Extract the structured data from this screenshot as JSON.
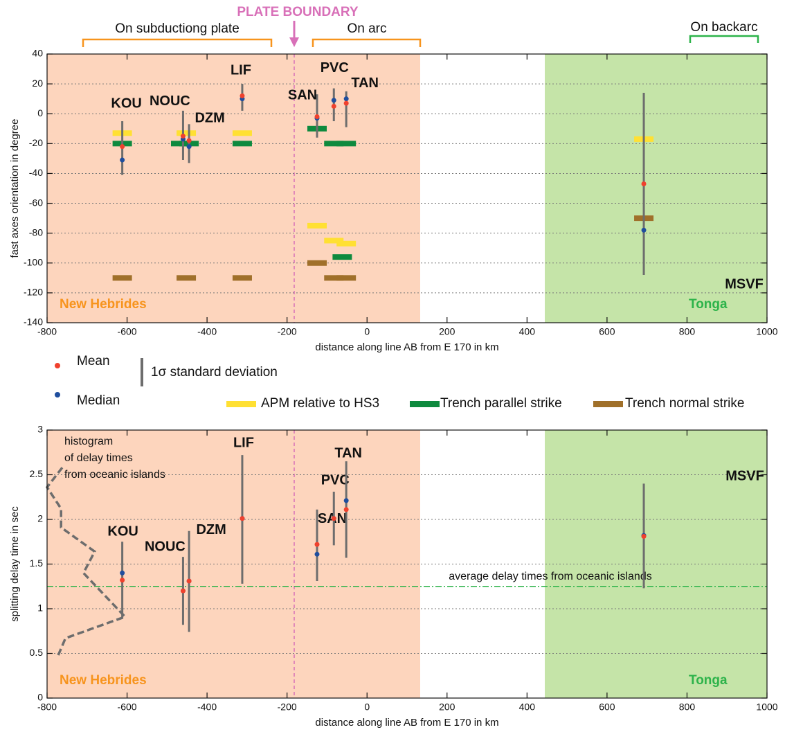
{
  "header": {
    "plate_boundary": "PLATE BOUNDARY",
    "regions": [
      "On subductiong plate",
      "On arc",
      "On backarc"
    ]
  },
  "legend": {
    "mean": "Mean",
    "median": "Median",
    "sd": "1σ standard deviation"
  },
  "colors": {
    "mean": "#f0412d",
    "median": "#1f4e9e",
    "sd": "#6d6d6d"
  },
  "chart_data": [
    {
      "type": "errorbar",
      "xlabel": "distance along line AB from E 170 in km",
      "ylabel": "fast axes orientation in degree",
      "region_labels": [
        "New Hebrides",
        "Tonga"
      ],
      "stations": [
        "KOU",
        "NOUC",
        "DZM",
        "LIF",
        "SAN",
        "PVC",
        "TAN",
        "MSVF"
      ],
      "x": [
        -612,
        -460,
        -445,
        -312,
        -125,
        -83,
        -52,
        692
      ],
      "mean": [
        -22,
        -15,
        -18,
        12,
        -2,
        5,
        7,
        -47
      ],
      "median": [
        -31,
        -17,
        -22,
        10,
        -3,
        9,
        10,
        -78
      ],
      "sd": [
        [
          -41,
          -5
        ],
        [
          -31,
          2
        ],
        [
          -33,
          -7
        ],
        [
          2,
          20
        ],
        [
          -16,
          13
        ],
        [
          -5,
          17
        ],
        [
          -9,
          15
        ],
        [
          -108,
          14
        ]
      ],
      "series": [
        {
          "name": "APM relative to HS3",
          "color": "#ffe033",
          "x": [
            -612,
            -452,
            -312,
            -125,
            -83,
            -52,
            692
          ],
          "values": [
            -13,
            -13,
            -13,
            -75,
            -85,
            -87,
            -17
          ]
        },
        {
          "name": "Trench parallel strike",
          "color": "#0e8a3e",
          "x": [
            -612,
            -466,
            -445,
            -312,
            -125,
            -83,
            -52,
            -62
          ],
          "values": [
            -20,
            -20,
            -20,
            -20,
            -10,
            -20,
            -20,
            -96
          ]
        },
        {
          "name": "Trench normal strike",
          "color": "#a0702a",
          "x": [
            -612,
            -452,
            -312,
            -125,
            -83,
            -52,
            692
          ],
          "values": [
            -110,
            -110,
            -110,
            -100,
            -110,
            -110,
            -70
          ]
        }
      ],
      "xlim": [
        -800,
        1000
      ],
      "xticks": [
        -800,
        -600,
        -400,
        -200,
        0,
        200,
        400,
        600,
        800,
        1000
      ],
      "ylim": [
        -140,
        40
      ],
      "yticks": [
        -140,
        -120,
        -100,
        -80,
        -60,
        -40,
        -20,
        0,
        20,
        40
      ],
      "grid": true
    },
    {
      "type": "errorbar",
      "xlabel": "distance along line AB from E 170 in km",
      "ylabel": "splitting delay time in sec",
      "region_labels": [
        "New Hebrides",
        "Tonga"
      ],
      "stations": [
        "KOU",
        "NOUC",
        "DZM",
        "LIF",
        "SAN",
        "PVC",
        "TAN",
        "MSVF"
      ],
      "x": [
        -612,
        -460,
        -445,
        -312,
        -125,
        -83,
        -52,
        692
      ],
      "mean": [
        1.32,
        1.2,
        1.31,
        2.01,
        1.72,
        2.01,
        2.11,
        1.81
      ],
      "median": [
        1.4,
        1.2,
        1.31,
        2.01,
        1.61,
        2.01,
        2.21,
        1.82
      ],
      "sd": [
        [
          0.9,
          1.75
        ],
        [
          0.82,
          1.58
        ],
        [
          0.74,
          1.87
        ],
        [
          1.28,
          2.72
        ],
        [
          1.31,
          2.11
        ],
        [
          1.71,
          2.31
        ],
        [
          1.57,
          2.65
        ],
        [
          1.23,
          2.4
        ]
      ],
      "reference_line": {
        "value": 1.25,
        "label": "average delay times from oceanic islands",
        "color": "#2db34a"
      },
      "histogram": {
        "label": [
          "histogram",
          "of delay times",
          "from oceanic islands"
        ],
        "color": "#6d6d6d",
        "x": [
          -762,
          -800,
          -765,
          -765,
          -681,
          -709,
          -605,
          -754,
          -773
        ],
        "values": [
          2.58,
          2.36,
          2.12,
          1.91,
          1.64,
          1.4,
          0.91,
          0.67,
          0.47
        ]
      },
      "xlim": [
        -800,
        1000
      ],
      "xticks": [
        -800,
        -600,
        -400,
        -200,
        0,
        200,
        400,
        600,
        800,
        1000
      ],
      "ylim": [
        0,
        3
      ],
      "yticks": [
        0,
        0.5,
        1,
        1.5,
        2,
        2.5,
        3
      ],
      "grid": true
    }
  ]
}
